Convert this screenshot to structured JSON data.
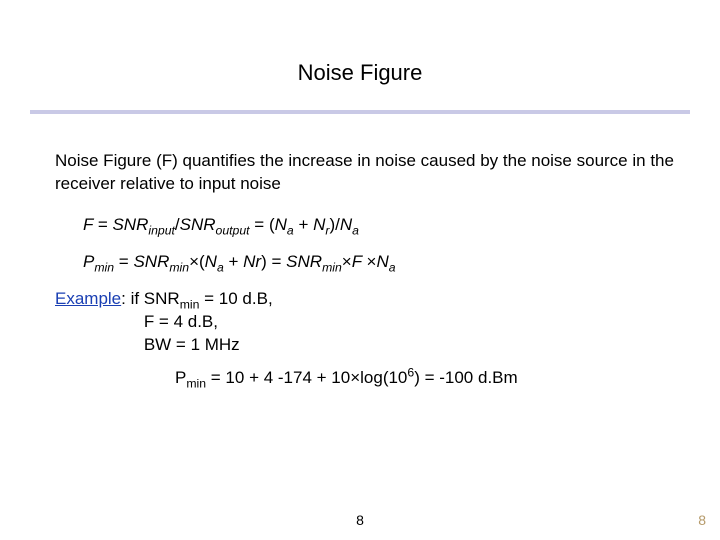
{
  "title": "Noise Figure",
  "rule_color": "#c9c9e6",
  "intro": "Noise Figure (F) quantifies the increase in noise caused by the noise source in the receiver relative to input noise",
  "eq1": {
    "lhs_var": "F",
    "snr_in_base": "SNR",
    "snr_in_sub": "input",
    "snr_out_base": "SNR",
    "snr_out_sub": "output",
    "na_base": "N",
    "na_sub": "a",
    "nr_base": "N",
    "nr_sub": "r"
  },
  "eq2": {
    "p_base": "P",
    "p_sub": "min",
    "snrmin_base": "SNR",
    "snrmin_sub": "min",
    "na_base": "N",
    "na_sub": "a",
    "nr_text": "Nr",
    "F": "F"
  },
  "example": {
    "label": "Example",
    "line1_a": ": if SNR",
    "line1_sub": "min",
    "line1_b": " = 10 d.B,",
    "line2": "F = 4 d.B,",
    "line3": "BW = 1 MHz"
  },
  "final": {
    "p_base": "P",
    "p_sub": "min",
    "text_a": " = 10 + 4 -174 + 10×log(10",
    "exp": "6",
    "text_b": ") = -100 d.Bm"
  },
  "page_center": "8",
  "page_right": "8"
}
